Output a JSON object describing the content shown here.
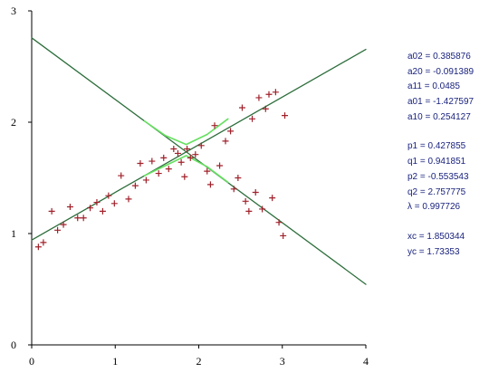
{
  "chart_data": {
    "type": "scatter",
    "title": "",
    "xlabel": "",
    "ylabel": "",
    "xlim": [
      0,
      4
    ],
    "ylim": [
      0,
      3
    ],
    "x_ticks": [
      "0",
      "1",
      "2",
      "3",
      "4"
    ],
    "y_ticks": [
      "0",
      "1",
      "2",
      "3"
    ],
    "grid": false,
    "legend": "none",
    "series": [
      {
        "type": "scatter",
        "marker": "plus",
        "color": "#a0202a",
        "points": [
          [
            0.08,
            0.88
          ],
          [
            0.14,
            0.92
          ],
          [
            0.24,
            1.2
          ],
          [
            0.31,
            1.03
          ],
          [
            0.38,
            1.08
          ],
          [
            0.46,
            1.24
          ],
          [
            0.55,
            1.14
          ],
          [
            0.62,
            1.14
          ],
          [
            0.7,
            1.23
          ],
          [
            0.78,
            1.28
          ],
          [
            0.85,
            1.2
          ],
          [
            0.92,
            1.34
          ],
          [
            0.99,
            1.27
          ],
          [
            1.07,
            1.52
          ],
          [
            1.16,
            1.31
          ],
          [
            1.24,
            1.43
          ],
          [
            1.3,
            1.63
          ],
          [
            1.37,
            1.48
          ],
          [
            1.44,
            1.65
          ],
          [
            1.52,
            1.54
          ],
          [
            1.58,
            1.68
          ],
          [
            1.64,
            1.58
          ],
          [
            1.7,
            1.76
          ],
          [
            1.75,
            1.72
          ],
          [
            1.79,
            1.64
          ],
          [
            1.83,
            1.51
          ],
          [
            1.86,
            1.76
          ],
          [
            1.9,
            1.68
          ],
          [
            1.96,
            1.71
          ],
          [
            2.03,
            1.79
          ],
          [
            2.1,
            1.56
          ],
          [
            2.14,
            1.44
          ],
          [
            2.19,
            1.97
          ],
          [
            2.25,
            1.61
          ],
          [
            2.32,
            1.83
          ],
          [
            2.38,
            1.92
          ],
          [
            2.42,
            1.4
          ],
          [
            2.47,
            1.5
          ],
          [
            2.52,
            2.13
          ],
          [
            2.56,
            1.29
          ],
          [
            2.6,
            1.2
          ],
          [
            2.64,
            2.03
          ],
          [
            2.68,
            1.37
          ],
          [
            2.72,
            2.22
          ],
          [
            2.76,
            1.22
          ],
          [
            2.8,
            2.12
          ],
          [
            2.84,
            2.25
          ],
          [
            2.88,
            1.32
          ],
          [
            2.92,
            2.27
          ],
          [
            2.96,
            1.1
          ],
          [
            3.01,
            0.98
          ],
          [
            3.03,
            2.06
          ]
        ]
      },
      {
        "type": "line",
        "color": "#2d6e3c",
        "points": [
          [
            0,
            2.757775
          ],
          [
            1.850344,
            1.73353
          ],
          [
            4,
            0.544
          ]
        ]
      },
      {
        "type": "line",
        "color": "#2d6e3c",
        "points": [
          [
            0,
            0.941851
          ],
          [
            1.850344,
            1.73353
          ],
          [
            4,
            2.654
          ]
        ]
      },
      {
        "type": "line",
        "color": "#66e060",
        "points": [
          [
            1.35,
            2.01
          ],
          [
            1.6,
            1.88
          ],
          [
            1.85,
            1.8
          ],
          [
            2.1,
            1.89
          ],
          [
            2.35,
            2.03
          ]
        ]
      },
      {
        "type": "line",
        "color": "#66e060",
        "points": [
          [
            1.35,
            1.52
          ],
          [
            1.6,
            1.61
          ],
          [
            1.85,
            1.7
          ],
          [
            2.1,
            1.6
          ],
          [
            2.35,
            1.46
          ]
        ]
      }
    ]
  },
  "parameters": [
    [
      {
        "label": "a02 = 0.385876"
      },
      {
        "label": "a20 = -0.091389"
      },
      {
        "label": "a11 = 0.0485"
      },
      {
        "label": "a01 = -1.427597"
      },
      {
        "label": "a10 = 0.254127"
      }
    ],
    [
      {
        "label": "p1 = 0.427855"
      },
      {
        "label": "q1 = 0.941851"
      },
      {
        "label": "p2 = -0.553543"
      },
      {
        "label": "q2 = 2.757775"
      },
      {
        "label": "λ = 0.997726"
      }
    ],
    [
      {
        "label": "xc = 1.850344"
      },
      {
        "label": "yc = 1.73353"
      }
    ]
  ]
}
